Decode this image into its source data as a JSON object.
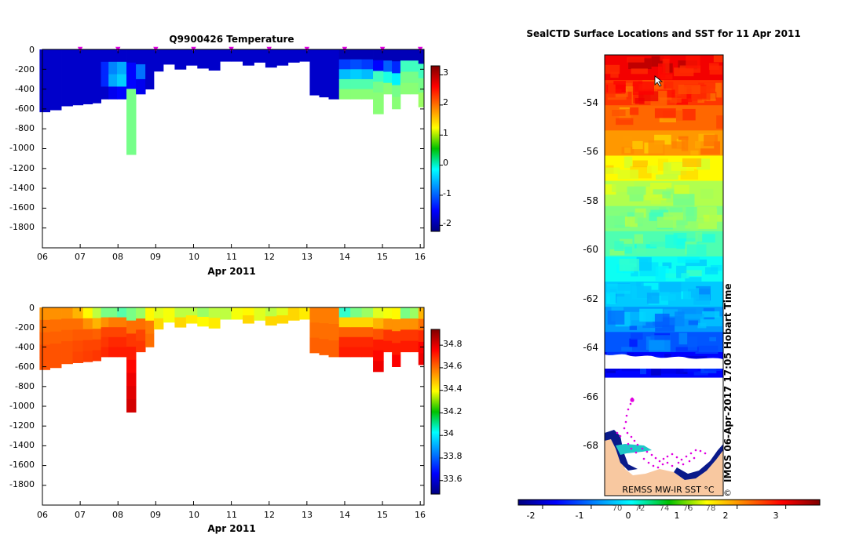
{
  "chart_data": [
    {
      "type": "heatmap",
      "title": "Q9900426  Temperature",
      "xlabel": "Apr 2011",
      "ylabel": "",
      "x_ticks": [
        "06",
        "07",
        "08",
        "09",
        "10",
        "11",
        "12",
        "13",
        "14",
        "15",
        "16"
      ],
      "y_ticks": [
        "0",
        "-200",
        "-400",
        "-600",
        "-800",
        "-1000",
        "-1200",
        "-1400",
        "-1600",
        "-1800"
      ],
      "xlim": [
        6,
        16.1
      ],
      "ylim": [
        -2000,
        0
      ],
      "colorbar_ticks": [
        "3",
        "2",
        "1",
        "0",
        "-1",
        "-2"
      ],
      "colorbar_range": [
        -2.2,
        3.3
      ],
      "surface_markers_day": [
        7,
        8,
        9,
        10,
        11,
        12,
        13,
        14,
        15,
        16
      ],
      "profiles": [
        {
          "x": 6.05,
          "depth": 630,
          "values": [
            -1.8
          ]
        },
        {
          "x": 6.35,
          "depth": 610,
          "values": [
            -1.8
          ]
        },
        {
          "x": 6.65,
          "depth": 570,
          "values": [
            -1.8
          ]
        },
        {
          "x": 6.95,
          "depth": 560,
          "values": [
            -1.8
          ]
        },
        {
          "x": 7.2,
          "depth": 550,
          "values": [
            -1.8
          ]
        },
        {
          "x": 7.45,
          "depth": 540,
          "values": [
            -1.8
          ]
        },
        {
          "x": 7.65,
          "depth": 500,
          "values": [
            -1.8,
            -1.3,
            -1.3,
            -1.8
          ]
        },
        {
          "x": 7.85,
          "depth": 500,
          "values": [
            -1.8,
            -0.8,
            -0.6,
            -1.6
          ]
        },
        {
          "x": 8.1,
          "depth": 500,
          "values": [
            -1.8,
            -0.6,
            -0.4,
            -1.5
          ]
        },
        {
          "x": 8.35,
          "depth": 1060,
          "values": [
            -1.8,
            -1.5,
            -1.5,
            0.5,
            0.5,
            0.5,
            0.5,
            0.5
          ]
        },
        {
          "x": 8.6,
          "depth": 450,
          "values": [
            -1.8,
            -0.9,
            -1.6
          ]
        },
        {
          "x": 8.85,
          "depth": 400,
          "values": [
            -1.8
          ]
        },
        {
          "x": 9.05,
          "depth": 220,
          "values": [
            -1.8
          ]
        },
        {
          "x": 9.35,
          "depth": 150,
          "values": [
            -1.8
          ]
        },
        {
          "x": 9.65,
          "depth": 200,
          "values": [
            -1.8
          ]
        },
        {
          "x": 9.95,
          "depth": 160,
          "values": [
            -1.8
          ]
        },
        {
          "x": 10.25,
          "depth": 190,
          "values": [
            -1.8
          ]
        },
        {
          "x": 10.55,
          "depth": 210,
          "values": [
            -1.8
          ]
        },
        {
          "x": 10.85,
          "depth": 120,
          "values": [
            -1.8
          ]
        },
        {
          "x": 11.15,
          "depth": 120,
          "values": [
            -1.8
          ]
        },
        {
          "x": 11.45,
          "depth": 160,
          "values": [
            -1.8
          ]
        },
        {
          "x": 11.75,
          "depth": 130,
          "values": [
            -1.8
          ]
        },
        {
          "x": 12.05,
          "depth": 180,
          "values": [
            -1.8
          ]
        },
        {
          "x": 12.35,
          "depth": 160,
          "values": [
            -1.8
          ]
        },
        {
          "x": 12.65,
          "depth": 130,
          "values": [
            -1.8
          ]
        },
        {
          "x": 12.95,
          "depth": 120,
          "values": [
            -1.8
          ]
        },
        {
          "x": 13.2,
          "depth": 460,
          "values": [
            -1.8
          ]
        },
        {
          "x": 13.45,
          "depth": 480,
          "values": [
            -1.8
          ]
        },
        {
          "x": 13.7,
          "depth": 500,
          "values": [
            -1.8
          ]
        },
        {
          "x": 14.0,
          "depth": 500,
          "values": [
            -1.9,
            -1.2,
            -0.5,
            0.3,
            0.6
          ]
        },
        {
          "x": 14.3,
          "depth": 500,
          "values": [
            -1.9,
            -1.1,
            -0.4,
            0.3,
            0.6
          ]
        },
        {
          "x": 14.6,
          "depth": 500,
          "values": [
            -1.9,
            -1.2,
            -0.5,
            0.3,
            0.6
          ]
        },
        {
          "x": 14.9,
          "depth": 650,
          "values": [
            -1.9,
            -1.5,
            0.2,
            0.5,
            0.6,
            0.6
          ]
        },
        {
          "x": 15.15,
          "depth": 450,
          "values": [
            -1.9,
            -1.0,
            0.0,
            0.6
          ]
        },
        {
          "x": 15.35,
          "depth": 600,
          "values": [
            -1.9,
            -1.3,
            -0.2,
            0.5,
            0.6
          ]
        },
        {
          "x": 15.6,
          "depth": 450,
          "values": [
            -1.9,
            0.2,
            0.5,
            0.6
          ]
        },
        {
          "x": 15.85,
          "depth": 450,
          "values": [
            -1.9,
            0.2,
            0.5,
            0.6
          ]
        },
        {
          "x": 16.05,
          "depth": 580,
          "values": [
            -1.9,
            0.2,
            0.5,
            0.7
          ]
        }
      ]
    },
    {
      "type": "heatmap",
      "title": "",
      "xlabel": "Apr 2011",
      "ylabel": "",
      "x_ticks": [
        "06",
        "07",
        "08",
        "09",
        "10",
        "11",
        "12",
        "13",
        "14",
        "15",
        "16"
      ],
      "y_ticks": [
        "0",
        "-200",
        "-400",
        "-600",
        "-800",
        "-1000",
        "-1200",
        "-1400",
        "-1600",
        "-1800"
      ],
      "xlim": [
        6,
        16.1
      ],
      "ylim": [
        -2000,
        0
      ],
      "colorbar_ticks": [
        "34.8",
        "34.6",
        "34.4",
        "34.2",
        "34",
        "33.8",
        "33.6"
      ],
      "colorbar_range": [
        33.48,
        34.94
      ],
      "profiles": [
        {
          "x": 6.05,
          "depth": 630,
          "values": [
            34.55,
            34.6,
            34.62,
            34.64,
            34.64
          ]
        },
        {
          "x": 6.35,
          "depth": 610,
          "values": [
            34.55,
            34.6,
            34.62,
            34.64,
            34.64
          ]
        },
        {
          "x": 6.65,
          "depth": 570,
          "values": [
            34.55,
            34.6,
            34.62,
            34.64,
            34.64
          ]
        },
        {
          "x": 6.95,
          "depth": 560,
          "values": [
            34.5,
            34.6,
            34.63,
            34.65,
            34.66
          ]
        },
        {
          "x": 7.2,
          "depth": 550,
          "values": [
            34.4,
            34.55,
            34.63,
            34.66,
            34.67
          ]
        },
        {
          "x": 7.45,
          "depth": 540,
          "values": [
            34.3,
            34.5,
            34.62,
            34.66,
            34.68
          ]
        },
        {
          "x": 7.65,
          "depth": 500,
          "values": [
            34.2,
            34.55,
            34.66,
            34.68,
            34.7
          ]
        },
        {
          "x": 7.85,
          "depth": 500,
          "values": [
            34.2,
            34.58,
            34.66,
            34.7,
            34.72
          ]
        },
        {
          "x": 8.1,
          "depth": 500,
          "values": [
            34.15,
            34.58,
            34.66,
            34.7,
            34.72
          ]
        },
        {
          "x": 8.35,
          "depth": 1060,
          "values": [
            34.2,
            34.6,
            34.68,
            34.72,
            34.75,
            34.78,
            34.8,
            34.82
          ]
        },
        {
          "x": 8.6,
          "depth": 450,
          "values": [
            34.25,
            34.6,
            34.66,
            34.68
          ]
        },
        {
          "x": 8.85,
          "depth": 400,
          "values": [
            34.4,
            34.58,
            34.6
          ]
        },
        {
          "x": 9.05,
          "depth": 220,
          "values": [
            34.35,
            34.45
          ]
        },
        {
          "x": 9.35,
          "depth": 150,
          "values": [
            34.38
          ]
        },
        {
          "x": 9.65,
          "depth": 200,
          "values": [
            34.3,
            34.45
          ]
        },
        {
          "x": 9.95,
          "depth": 160,
          "values": [
            34.3,
            34.42
          ]
        },
        {
          "x": 10.25,
          "depth": 190,
          "values": [
            34.25,
            34.4
          ]
        },
        {
          "x": 10.55,
          "depth": 210,
          "values": [
            34.3,
            34.42
          ]
        },
        {
          "x": 10.85,
          "depth": 120,
          "values": [
            34.3
          ]
        },
        {
          "x": 11.15,
          "depth": 120,
          "values": [
            34.38
          ]
        },
        {
          "x": 11.45,
          "depth": 160,
          "values": [
            34.4,
            34.45
          ]
        },
        {
          "x": 11.75,
          "depth": 130,
          "values": [
            34.35
          ]
        },
        {
          "x": 12.05,
          "depth": 180,
          "values": [
            34.3,
            34.45
          ]
        },
        {
          "x": 12.35,
          "depth": 160,
          "values": [
            34.35,
            34.45
          ]
        },
        {
          "x": 12.65,
          "depth": 130,
          "values": [
            34.45
          ]
        },
        {
          "x": 12.95,
          "depth": 120,
          "values": [
            34.42
          ]
        },
        {
          "x": 13.2,
          "depth": 460,
          "values": [
            34.58,
            34.6,
            34.62
          ]
        },
        {
          "x": 13.45,
          "depth": 480,
          "values": [
            34.58,
            34.6,
            34.62
          ]
        },
        {
          "x": 13.7,
          "depth": 500,
          "values": [
            34.58,
            34.6,
            34.62
          ]
        },
        {
          "x": 14.0,
          "depth": 500,
          "values": [
            34.1,
            34.45,
            34.62,
            34.7,
            34.72
          ]
        },
        {
          "x": 14.3,
          "depth": 500,
          "values": [
            34.2,
            34.45,
            34.62,
            34.7,
            34.72
          ]
        },
        {
          "x": 14.6,
          "depth": 500,
          "values": [
            34.25,
            34.45,
            34.62,
            34.7,
            34.72
          ]
        },
        {
          "x": 14.9,
          "depth": 650,
          "values": [
            34.35,
            34.5,
            34.64,
            34.72,
            34.75,
            34.78
          ]
        },
        {
          "x": 15.15,
          "depth": 450,
          "values": [
            34.38,
            34.55,
            34.68,
            34.72
          ]
        },
        {
          "x": 15.35,
          "depth": 600,
          "values": [
            34.4,
            34.55,
            34.68,
            34.72,
            34.76
          ]
        },
        {
          "x": 15.6,
          "depth": 450,
          "values": [
            34.2,
            34.55,
            34.68,
            34.72
          ]
        },
        {
          "x": 15.85,
          "depth": 450,
          "values": [
            34.25,
            34.55,
            34.68,
            34.72
          ]
        },
        {
          "x": 16.05,
          "depth": 580,
          "values": [
            34.5,
            34.6,
            34.7,
            34.76,
            34.78
          ]
        }
      ]
    },
    {
      "type": "heatmap",
      "title": "SealCTD Surface Locations and SST for 11 Apr 2011",
      "y_ticks": [
        "-54",
        "-56",
        "-58",
        "-60",
        "-62",
        "-64",
        "-66",
        "-68"
      ],
      "ylim": [
        -69.5,
        -52
      ],
      "colorbar_label": "REMSS MW-IR SST °C",
      "colorbar_ticks": [
        "-2",
        "-1",
        "0",
        "1",
        "2",
        "3"
      ],
      "colorbar_range": [
        -2.5,
        3.7
      ],
      "colorbar_overlay_labels": [
        "70",
        "72",
        "74",
        "76",
        "78"
      ],
      "sst_rows": [
        {
          "lat": -52.5,
          "value": 3.0
        },
        {
          "lat": -53.5,
          "value": 2.6
        },
        {
          "lat": -54.5,
          "value": 2.3
        },
        {
          "lat": -55.5,
          "value": 2.0
        },
        {
          "lat": -56.5,
          "value": 1.4
        },
        {
          "lat": -57.5,
          "value": 0.9
        },
        {
          "lat": -58.5,
          "value": 0.6
        },
        {
          "lat": -59.5,
          "value": 0.3
        },
        {
          "lat": -60.5,
          "value": -0.1
        },
        {
          "lat": -61.5,
          "value": -0.5
        },
        {
          "lat": -62.5,
          "value": -0.8
        },
        {
          "lat": -63.5,
          "value": -1.2
        },
        {
          "lat": -64.3,
          "value": -1.7
        }
      ],
      "annotation": "IMOS 06-Apr-2017 17:05 Hobart Time",
      "copyright": "©"
    }
  ]
}
